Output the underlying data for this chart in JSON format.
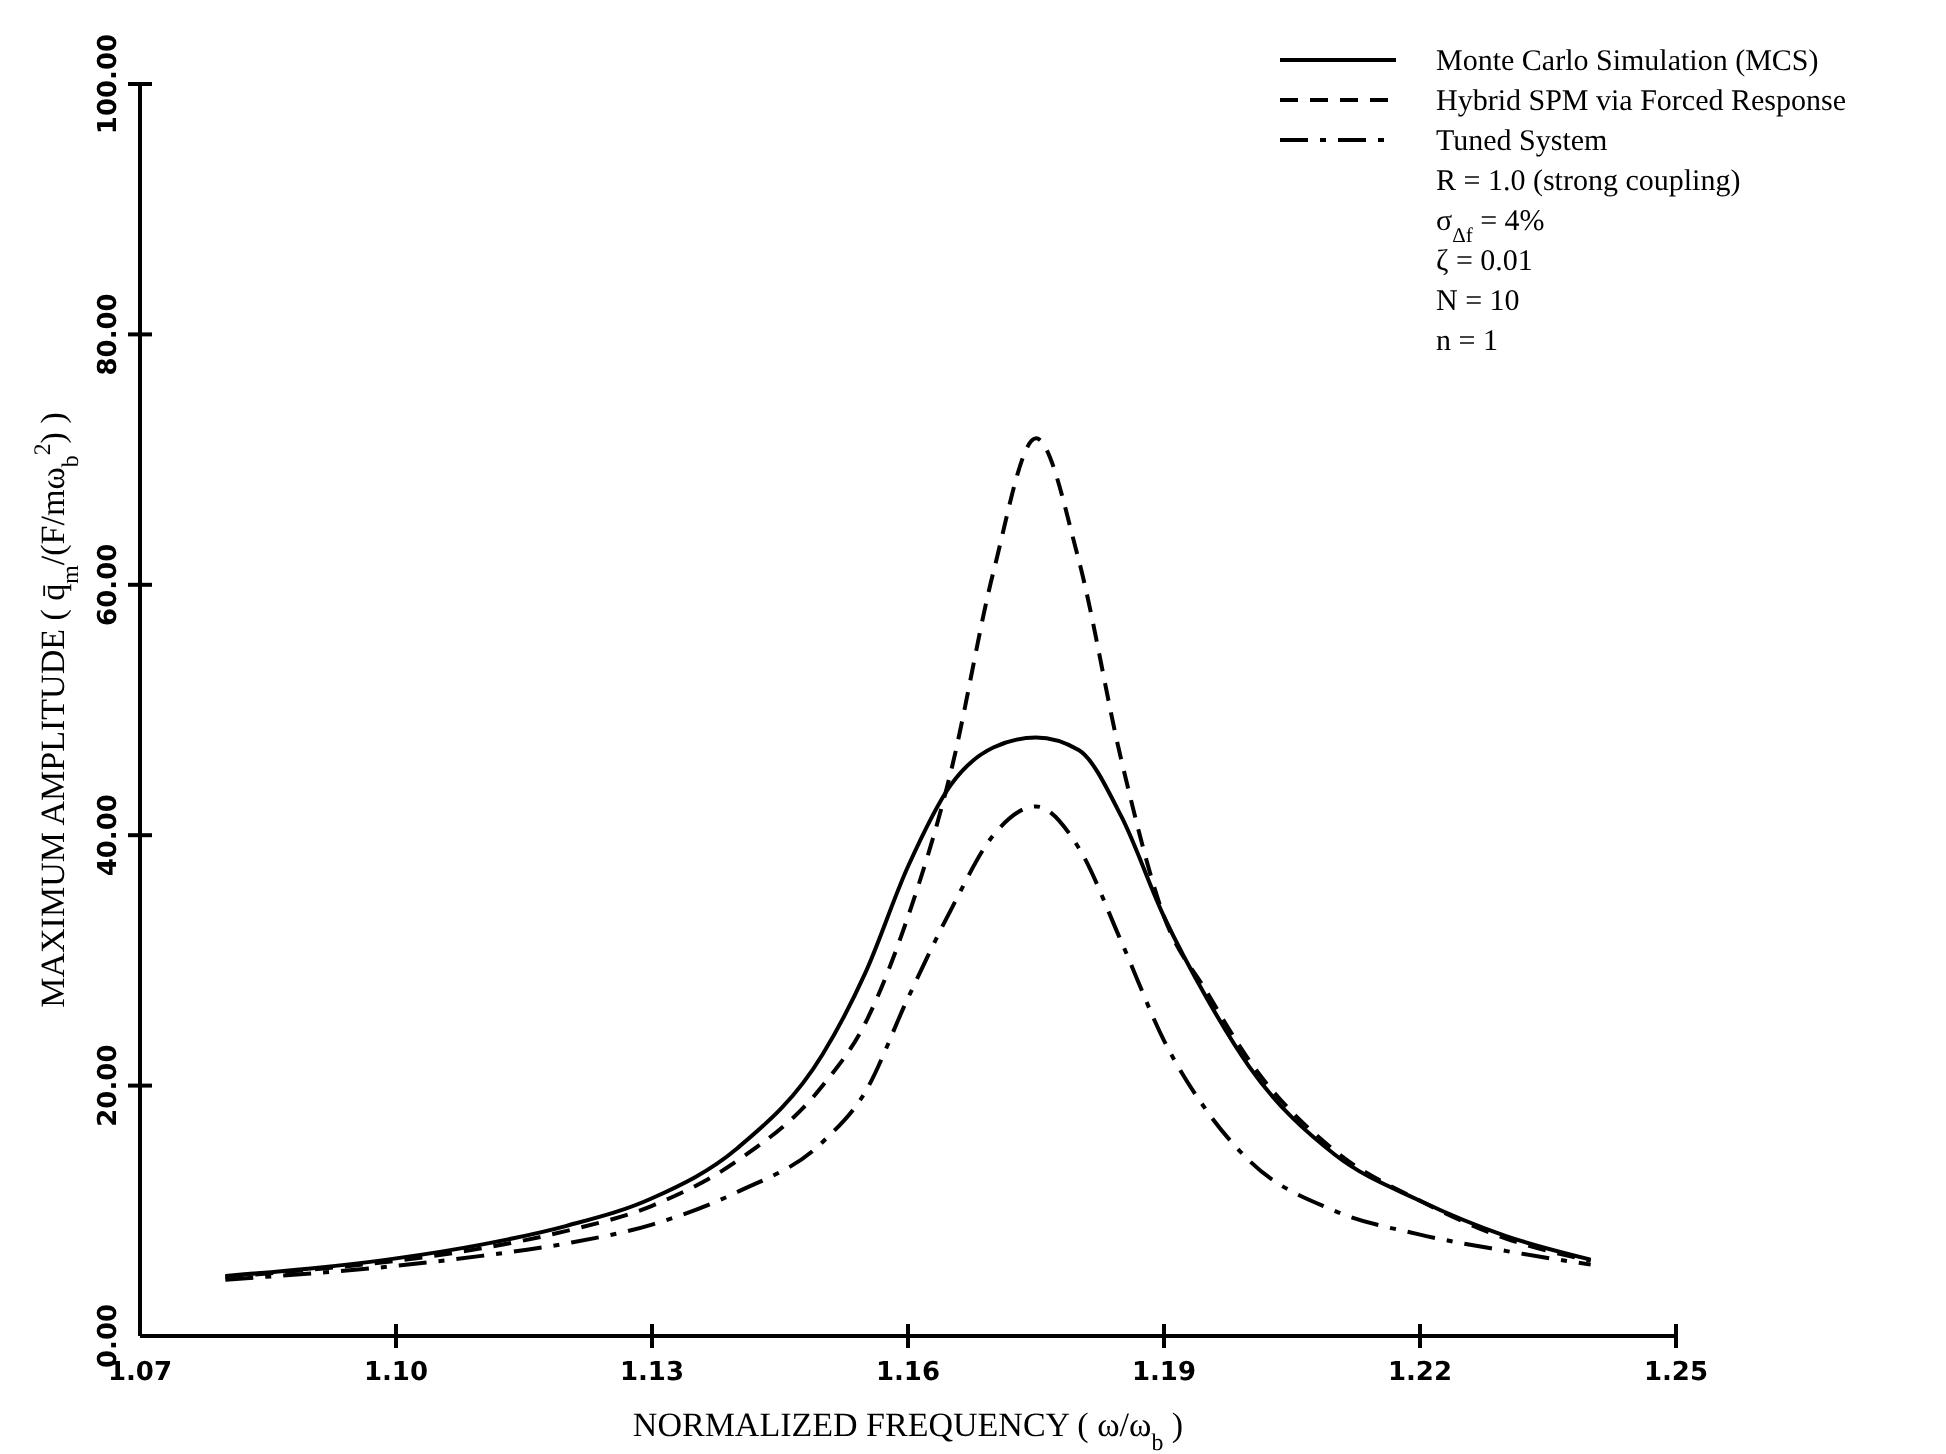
{
  "chart_data": {
    "type": "line",
    "xlabel": "NORMALIZED FREQUENCY ( ω/ω$_{b}$ )",
    "ylabel": "MAXIMUM AMPLITUDE ( q̄$_{m}$/(F/mω$_{b}$$^{2}$) )",
    "xlim": [
      1.07,
      1.25
    ],
    "ylim": [
      0,
      100
    ],
    "xticks": [
      1.07,
      {
        "value": 1.1,
        "label": "1.10"
      },
      1.13,
      1.16,
      1.19,
      1.22,
      1.25
    ],
    "yticks": [
      {
        "value": 0,
        "label": "0.00"
      },
      {
        "value": 20,
        "label": "20.00"
      },
      {
        "value": 40,
        "label": "40.00"
      },
      {
        "value": 60,
        "label": "60.00"
      },
      {
        "value": 80,
        "label": "80.00"
      },
      {
        "value": 100,
        "label": "100.00"
      }
    ],
    "x": [
      1.08,
      1.09,
      1.1,
      1.11,
      1.12,
      1.13,
      1.14,
      1.15,
      1.155,
      1.16,
      1.165,
      1.17,
      1.175,
      1.18,
      1.185,
      1.19,
      1.195,
      1.2,
      1.21,
      1.22,
      1.23,
      1.24
    ],
    "series": [
      {
        "name": "Monte Carlo Simulation (MCS)",
        "color": "#000000",
        "line_style": "solid",
        "values": [
          4.8,
          5.4,
          6.2,
          7.3,
          8.8,
          11,
          15,
          22.5,
          29,
          37.5,
          44,
          47,
          47.8,
          46.8,
          41.5,
          33.5,
          27,
          21.5,
          14.5,
          10.8,
          8,
          6.1
        ]
      },
      {
        "name": "Hybrid SPM via Forced Response",
        "color": "#000000",
        "line_style": "dashed",
        "values": [
          4.7,
          5.3,
          6,
          7,
          8.4,
          10.4,
          14,
          20,
          25,
          33.5,
          45,
          61,
          71.7,
          62,
          46,
          33.5,
          27.5,
          22,
          14.8,
          10.8,
          7.8,
          6
        ]
      },
      {
        "name": "Tuned System",
        "color": "#000000",
        "line_style": "dashdot",
        "values": [
          4.5,
          5,
          5.6,
          6.4,
          7.4,
          8.9,
          11.5,
          15.5,
          19.5,
          27,
          34,
          40,
          42.3,
          39,
          31.5,
          23.6,
          18,
          14,
          10,
          8.1,
          6.8,
          5.7
        ]
      }
    ],
    "legend": "top right",
    "grid": false,
    "annotations": [
      "R = 1.0 (strong coupling)",
      "σ$_{Δf}$ = 4%",
      "ζ = 0.01",
      "N = 10",
      "n = 1"
    ]
  }
}
